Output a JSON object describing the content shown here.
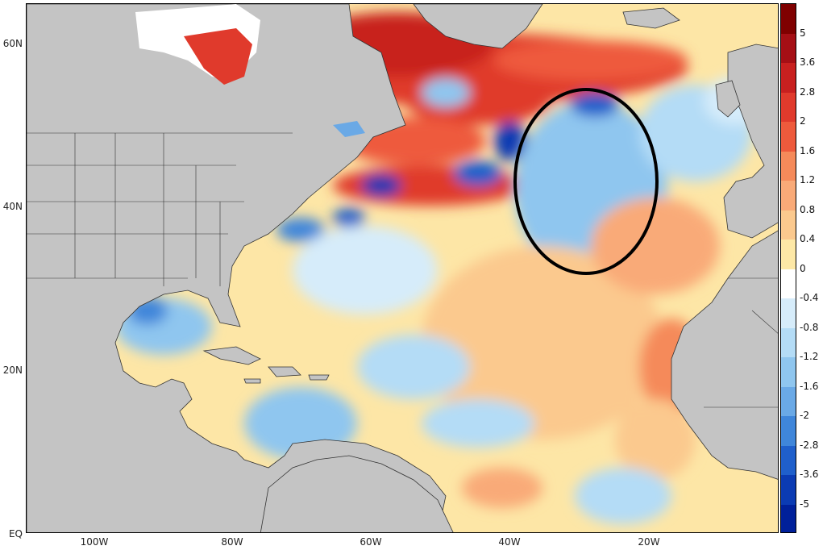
{
  "map": {
    "latitude_labels": [
      "60N",
      "40N",
      "20N",
      "EQ"
    ],
    "longitude_labels": [
      "100W",
      "80W",
      "60W",
      "40W",
      "20W"
    ],
    "land_color": "#c4c4c4",
    "ocean_base_color": "#fde6a6",
    "annotation": "black ellipse around negative anomaly region in mid-North Atlantic near 30W 40N"
  },
  "colorbar": {
    "labels": [
      "5",
      "3.6",
      "2.8",
      "2",
      "1.6",
      "1.2",
      "0.8",
      "0.4",
      "0",
      "-0.4",
      "-0.8",
      "-1.2",
      "-1.6",
      "-2",
      "-2.8",
      "-3.6",
      "-5"
    ],
    "colors": [
      "#7f0000",
      "#a50f15",
      "#c8201f",
      "#e03a2c",
      "#ee5a3c",
      "#f58a5a",
      "#f9aa78",
      "#fbc98e",
      "#fde8a6",
      "#ffffff",
      "#d6ecfa",
      "#b4dcf6",
      "#8fc6ef",
      "#6aa9e6",
      "#3f86da",
      "#1f5fcb",
      "#0b3bb3",
      "#00209a"
    ]
  }
}
